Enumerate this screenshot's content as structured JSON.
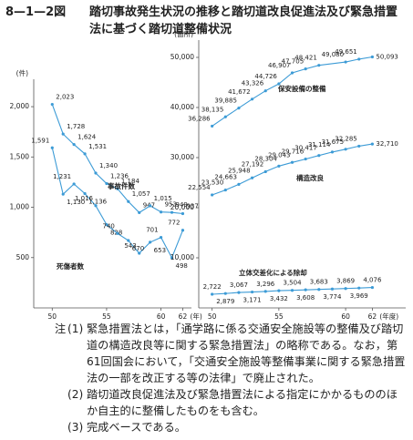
{
  "figure_number": "8—1—2図",
  "title": "踏切事故発生状況の推移と踏切道改良促進法及び緊急措置法に基づく踏切道整備状況",
  "chart_data": [
    {
      "type": "line",
      "y_unit": "(件)",
      "x_unit": "(年)",
      "x": [
        50,
        51,
        52,
        53,
        54,
        55,
        56,
        57,
        58,
        59,
        60,
        61,
        62
      ],
      "xlim": [
        48.3,
        62.8
      ],
      "xticks": [
        50,
        55,
        60,
        62
      ],
      "ylim": [
        0,
        2200
      ],
      "yticks": [
        500,
        {
          "value": 1000,
          "label": "1,000"
        },
        {
          "value": 1500,
          "label": "1,500"
        },
        {
          "value": 2000,
          "label": "2,000"
        }
      ],
      "series": [
        {
          "name": "事故件数",
          "color": "#3c9bd6",
          "values": [
            2023,
            1728,
            1624,
            1531,
            1340,
            1236,
            1184,
            1057,
            947,
            1015,
            953,
            949,
            937
          ],
          "value_labels": [
            "2,023",
            "1,728",
            "1,624",
            "1,531",
            "1,340",
            "1,236",
            "1,184",
            "1,057",
            "947",
            "1,015",
            "953",
            "949",
            "937"
          ]
        },
        {
          "name": "死傷者数",
          "color": "#3c9bd6",
          "values": [
            1591,
            1130,
            1231,
            1136,
            1016,
            828,
            740,
            670,
            543,
            653,
            701,
            498,
            772
          ],
          "value_labels": [
            "1,591",
            "1,130",
            "1,231",
            "1,136",
            "1,016",
            "828",
            "740",
            "670",
            "543",
            "653",
            "701",
            "498",
            "772"
          ]
        }
      ]
    },
    {
      "type": "line",
      "y_unit": "(箇所)",
      "x_unit": "(年度)",
      "x": [
        50,
        51,
        52,
        53,
        54,
        55,
        56,
        57,
        58,
        59,
        60,
        61,
        62
      ],
      "xlim": [
        49,
        64.5
      ],
      "xticks": [
        50,
        55,
        60,
        62
      ],
      "ylim": [
        0,
        52000
      ],
      "yticks": [
        {
          "value": 10000,
          "label": "10,000"
        },
        {
          "value": 20000,
          "label": "20,000"
        },
        {
          "value": 30000,
          "label": "30,000"
        },
        {
          "value": 40000,
          "label": "40,000"
        },
        {
          "value": 50000,
          "label": "50,000"
        }
      ],
      "series": [
        {
          "name": "保安設備の整備",
          "color": "#3c9bd6",
          "x": [
            50,
            51,
            52,
            53,
            54,
            55,
            56,
            57,
            58,
            60,
            61,
            62
          ],
          "values": [
            36286,
            38135,
            39885,
            41672,
            43326,
            44726,
            46907,
            47705,
            48421,
            49080,
            49651,
            50093
          ],
          "value_labels": [
            "36,286",
            "38,135",
            "39,885",
            "41,672",
            "43,326",
            "44,726",
            "46,907",
            "47,705",
            "48,421",
            "49,080",
            "49,651",
            "50,093"
          ]
        },
        {
          "name": "構造改良",
          "color": "#3c9bd6",
          "values": [
            22554,
            23530,
            24663,
            25948,
            27192,
            28304,
            29043,
            29716,
            30417,
            31114,
            31675,
            32285,
            32710
          ],
          "value_labels": [
            "22,554",
            "23,530",
            "24,663",
            "25,948",
            "27,192",
            "28,304",
            "29,043",
            "29,716",
            "30,417",
            "31,114",
            "31,675",
            "32,285",
            "32,710"
          ]
        },
        {
          "name": "立体交差化による除却",
          "color": "#3c9bd6",
          "values": [
            2722,
            2879,
            3067,
            3171,
            3296,
            3432,
            3504,
            3608,
            3683,
            3774,
            3869,
            3969,
            4076
          ],
          "value_labels": [
            "2,722",
            "2,879",
            "3,067",
            "3,171",
            "3,296",
            "3,432",
            "3,504",
            "3,608",
            "3,683",
            "3,774",
            "3,869",
            "3,969",
            "4,076"
          ]
        }
      ]
    }
  ],
  "notes_label": "注",
  "notes": [
    {
      "number": "(1)",
      "text": "緊急措置法とは，「通学路に係る交通安全施設等の整備及び踏切道の構造改良等に関する緊急措置法」の略称である。なお，第61回国会において，「交通安全施設等整備事業に関する緊急措置法の一部を改正する等の法律」で廃止された。"
    },
    {
      "number": "(2)",
      "text": "踏切道改良促進法及び緊急措置法による指定にかかるもののほか自主的に整備したものをも含む。"
    },
    {
      "number": "(3)",
      "text": "完成ベースである。"
    }
  ]
}
